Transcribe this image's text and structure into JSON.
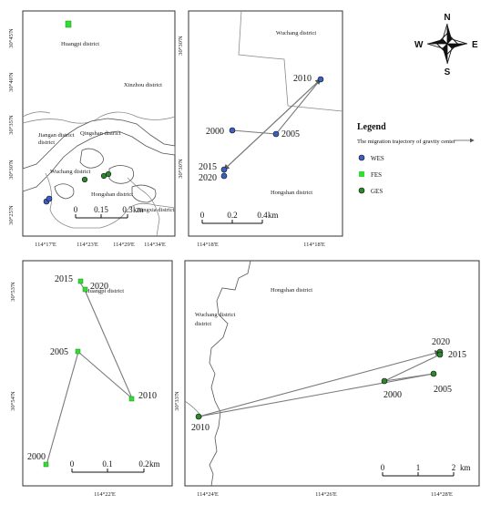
{
  "legend": {
    "title": "Legend",
    "subtitle": "The migration trajectory of gravity center",
    "items": [
      {
        "label": "WES",
        "color": "#3b5fc4"
      },
      {
        "label": "FES",
        "color": "#33dd33"
      },
      {
        "label": "GES",
        "color": "#2a8a2a"
      }
    ]
  },
  "compass": {
    "n": "N",
    "s": "S",
    "e": "E",
    "w": "W"
  },
  "panel_overview": {
    "districts": [
      "Huangpi district",
      "Xinzhou district",
      "Jiangan district",
      "Qingshan district",
      "Wuchang district",
      "Hongshan district",
      "Jiangxia district"
    ],
    "lat_labels": [
      "30°45'N",
      "30°40'N",
      "30°35'N",
      "30°30'N",
      "30°25'N"
    ],
    "lon_labels": [
      "114°17'E",
      "114°23'E",
      "114°29'E",
      "114°34'E"
    ],
    "scale": {
      "ticks": [
        "0",
        "0.15",
        "0.3"
      ],
      "unit": "km"
    }
  },
  "panel_wes": {
    "districts": [
      "Wuchang district",
      "Hongshan district"
    ],
    "lat_labels": [
      "30°30'N",
      "30°30'N"
    ],
    "lon_labels": [
      "114°18'E",
      "114°18'E"
    ],
    "years": [
      "2010",
      "2000",
      "2005",
      "2015",
      "2020"
    ],
    "scale": {
      "ticks": [
        "0",
        "0.2",
        "0.4"
      ],
      "unit": "km"
    }
  },
  "panel_fes": {
    "districts": [
      "Huangpi district"
    ],
    "lat_labels": [
      "30°53'N",
      "30°54'N"
    ],
    "lon_labels": [
      "114°22'E"
    ],
    "years": [
      "2015",
      "2020",
      "2005",
      "2010",
      "2000"
    ],
    "scale": {
      "ticks": [
        "0",
        "0.1",
        "0.2"
      ],
      "unit": "km"
    }
  },
  "panel_ges": {
    "districts": [
      "Hongshan district",
      "Wuchang district"
    ],
    "lat_labels": [
      "30°33'N"
    ],
    "lon_labels": [
      "114°24'E",
      "114°26'E",
      "114°28'E"
    ],
    "years": [
      "2020",
      "2015",
      "2000",
      "2005",
      "2010"
    ],
    "scale": {
      "ticks": [
        "0",
        "1",
        "2"
      ],
      "unit": "km"
    }
  }
}
